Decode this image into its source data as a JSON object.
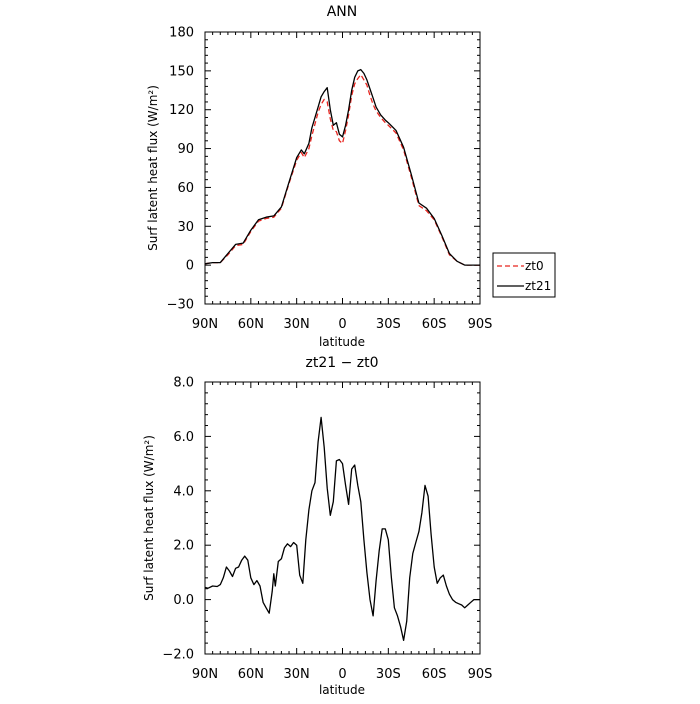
{
  "chart_data": [
    {
      "type": "line",
      "title": "ANN",
      "xlabel": "latitude",
      "ylabel": "Surf latent heat flux (W/m²)",
      "xlim": [
        -90,
        90
      ],
      "ylim": [
        -30,
        180
      ],
      "xticks": [
        -90,
        -60,
        -30,
        0,
        30,
        60,
        90
      ],
      "xticklabels": [
        "90N",
        "60N",
        "30N",
        "0",
        "30S",
        "60S",
        "90S"
      ],
      "yticks": [
        -30,
        0,
        30,
        60,
        90,
        120,
        150,
        180
      ],
      "yticklabels": [
        "−30",
        "0",
        "30",
        "60",
        "90",
        "120",
        "150",
        "180"
      ],
      "legend": {
        "placement": "outside-right",
        "entries": [
          "zt0",
          "zt21"
        ]
      },
      "series": [
        {
          "name": "zt0",
          "color": "#e8251f",
          "dash": "dashed",
          "x": [
            -90,
            -85,
            -80,
            -75,
            -70,
            -65,
            -60,
            -55,
            -50,
            -45,
            -40,
            -35,
            -30,
            -27,
            -25,
            -22,
            -20,
            -16,
            -14,
            -12,
            -10,
            -8,
            -6,
            -4,
            -2,
            0,
            2,
            4,
            6,
            8,
            10,
            12,
            14,
            16,
            18,
            20,
            22,
            25,
            28,
            30,
            35,
            40,
            45,
            50,
            55,
            60,
            65,
            70,
            75,
            80,
            85,
            90
          ],
          "y": [
            1,
            2,
            2,
            8,
            15,
            16,
            26,
            34,
            36,
            37,
            44,
            63,
            81,
            87,
            83,
            90,
            100,
            118,
            124,
            128,
            126,
            113,
            104,
            103,
            96,
            94,
            104,
            116,
            131,
            140,
            144,
            147,
            143,
            139,
            131,
            124,
            119,
            114,
            110,
            108,
            102,
            89,
            68,
            46,
            42,
            35,
            22,
            8,
            3,
            0,
            0,
            0
          ]
        },
        {
          "name": "zt21",
          "color": "#000000",
          "dash": "solid",
          "x": [
            -90,
            -85,
            -80,
            -75,
            -70,
            -65,
            -60,
            -55,
            -50,
            -45,
            -40,
            -35,
            -30,
            -27,
            -25,
            -22,
            -20,
            -16,
            -14,
            -12,
            -10,
            -8,
            -6,
            -4,
            -2,
            0,
            2,
            4,
            6,
            8,
            10,
            12,
            14,
            16,
            18,
            20,
            22,
            25,
            28,
            30,
            35,
            40,
            45,
            50,
            55,
            60,
            65,
            70,
            75,
            80,
            85,
            90
          ],
          "y": [
            1,
            2,
            2,
            9,
            16,
            17,
            27,
            35,
            37,
            38,
            45,
            64,
            83,
            89,
            86,
            94,
            106,
            122,
            130,
            134,
            137,
            120,
            108,
            110,
            101,
            99,
            108,
            120,
            135,
            145,
            150,
            151,
            148,
            143,
            136,
            129,
            122,
            116,
            112,
            110,
            104,
            91,
            70,
            48,
            44,
            36,
            23,
            9,
            3,
            0,
            0,
            0
          ]
        }
      ]
    },
    {
      "type": "line",
      "title": "zt21 − zt0",
      "xlabel": "latitude",
      "ylabel": "Surf latent heat flux (W/m²)",
      "xlim": [
        -90,
        90
      ],
      "ylim": [
        -2,
        8
      ],
      "xticks": [
        -90,
        -60,
        -30,
        0,
        30,
        60,
        90
      ],
      "xticklabels": [
        "90N",
        "60N",
        "30N",
        "0",
        "30S",
        "60S",
        "90S"
      ],
      "yticks": [
        -2,
        0,
        2,
        4,
        6,
        8
      ],
      "yticklabels": [
        "−2.0",
        "0.0",
        "2.0",
        "4.0",
        "6.0",
        "8.0"
      ],
      "series": [
        {
          "color": "#000000",
          "dash": "solid",
          "x": [
            -90,
            -88,
            -85,
            -82,
            -80,
            -78,
            -76,
            -74,
            -72,
            -70,
            -68,
            -66,
            -64,
            -62,
            -60,
            -58,
            -56,
            -54,
            -52,
            -50,
            -48,
            -46,
            -45,
            -44,
            -42,
            -40,
            -38,
            -36,
            -34,
            -32,
            -30,
            -28,
            -26,
            -24,
            -22,
            -20,
            -18,
            -16,
            -14,
            -12,
            -10,
            -8,
            -6,
            -4,
            -2,
            0,
            2,
            4,
            6,
            8,
            10,
            12,
            14,
            16,
            18,
            20,
            22,
            24,
            26,
            28,
            30,
            32,
            34,
            36,
            38,
            40,
            42,
            44,
            46,
            48,
            50,
            52,
            54,
            56,
            58,
            60,
            62,
            64,
            66,
            68,
            70,
            72,
            74,
            76,
            78,
            80,
            82,
            84,
            86,
            88,
            90
          ],
          "y": [
            0.45,
            0.42,
            0.5,
            0.48,
            0.55,
            0.8,
            1.2,
            1.05,
            0.85,
            1.15,
            1.2,
            1.45,
            1.6,
            1.45,
            0.8,
            0.55,
            0.7,
            0.5,
            -0.1,
            -0.3,
            -0.5,
            0.3,
            0.95,
            0.5,
            1.4,
            1.5,
            1.9,
            2.05,
            1.95,
            2.1,
            2.0,
            0.9,
            0.6,
            2.2,
            3.3,
            4.0,
            4.3,
            5.8,
            6.7,
            5.6,
            4.1,
            3.1,
            3.6,
            5.1,
            5.15,
            5.0,
            4.2,
            3.5,
            4.8,
            4.95,
            4.2,
            3.6,
            2.2,
            1.0,
            0.0,
            -0.6,
            0.7,
            1.8,
            2.6,
            2.6,
            2.2,
            0.8,
            -0.3,
            -0.6,
            -1.0,
            -1.5,
            -0.8,
            0.8,
            1.7,
            2.1,
            2.5,
            3.2,
            4.2,
            3.8,
            2.4,
            1.2,
            0.6,
            0.8,
            0.9,
            0.5,
            0.2,
            0.0,
            -0.1,
            -0.15,
            -0.2,
            -0.3,
            -0.2,
            -0.1,
            0.0,
            0.0,
            0.0
          ]
        }
      ]
    }
  ]
}
